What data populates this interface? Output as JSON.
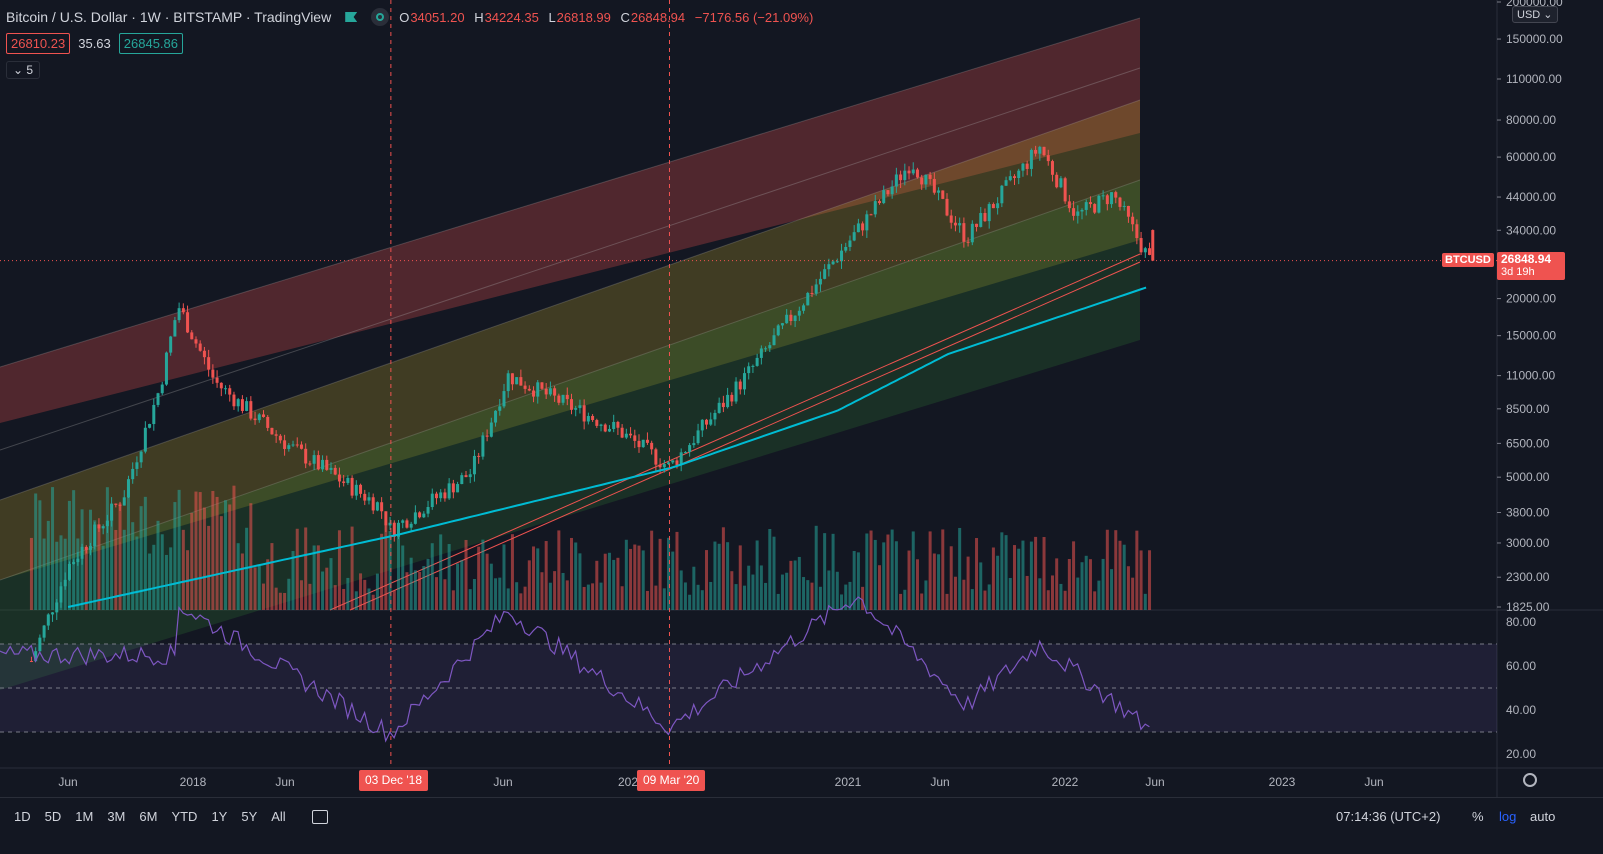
{
  "header": {
    "title": "Bitcoin / U.S. Dollar · 1W · BITSTAMP · TradingView",
    "ohlc": [
      {
        "label": "O",
        "value": "34051.20"
      },
      {
        "label": "H",
        "value": "34224.35"
      },
      {
        "label": "L",
        "value": "26818.99"
      },
      {
        "label": "C",
        "value": "26848.94"
      }
    ],
    "change": "−7176.56 (−21.09%)",
    "sma_value": "26810.23",
    "sma_spread": "35.63",
    "ema_value": "26845.86",
    "collapse_count": "5",
    "currency": "USD"
  },
  "price_scale": {
    "labels": [
      "200000.00",
      "150000.00",
      "110000.00",
      "80000.00",
      "60000.00",
      "44000.00",
      "34000.00",
      "20000.00",
      "15000.00",
      "11000.00",
      "8500.00",
      "6500.00",
      "5000.00",
      "3800.00",
      "3000.00",
      "2300.00",
      "1825.00"
    ],
    "symbol_tag": "BTCUSD",
    "last_price": "26848.94",
    "countdown": "3d 19h"
  },
  "rsi_scale": {
    "labels": [
      "80.00",
      "60.00",
      "40.00",
      "20.00"
    ]
  },
  "time_axis": {
    "labels": [
      "Jun",
      "2018",
      "Jun",
      "Jun",
      "2021",
      "Jun",
      "2022",
      "Jun",
      "2023",
      "Jun"
    ],
    "partial_label": "202",
    "markers": [
      "03 Dec '18",
      "09 Mar '20"
    ]
  },
  "bottom_bar": {
    "ranges": [
      "1D",
      "5D",
      "1M",
      "3M",
      "6M",
      "YTD",
      "1Y",
      "5Y",
      "All"
    ],
    "clock": "07:14:36 (UTC+2)",
    "percent": "%",
    "log": "log",
    "auto": "auto"
  },
  "colors": {
    "up": "#26a69a",
    "down": "#ef5350",
    "ma": "#00bcd4",
    "rsi": "#7e57c2"
  },
  "chart_data": {
    "type": "candlestick",
    "title": "Bitcoin / U.S. Dollar · 1W · BITSTAMP",
    "yscale": "log",
    "ylim": [
      1825,
      200000
    ],
    "last": {
      "open": 34051.2,
      "high": 34224.35,
      "low": 26818.99,
      "close": 26848.94
    },
    "weekly_closes_approx": [
      {
        "date": "2017-04",
        "close": 1200
      },
      {
        "date": "2017-06",
        "close": 2500
      },
      {
        "date": "2017-09",
        "close": 4300
      },
      {
        "date": "2017-11",
        "close": 10000
      },
      {
        "date": "2017-12",
        "close": 19000
      },
      {
        "date": "2018-02",
        "close": 10500
      },
      {
        "date": "2018-06",
        "close": 6400
      },
      {
        "date": "2018-11",
        "close": 4000
      },
      {
        "date": "2018-12-03",
        "close": 3300
      },
      {
        "date": "2019-04",
        "close": 5200
      },
      {
        "date": "2019-06",
        "close": 11000
      },
      {
        "date": "2019-12",
        "close": 7200
      },
      {
        "date": "2020-03-09",
        "close": 5400
      },
      {
        "date": "2020-07",
        "close": 11000
      },
      {
        "date": "2020-12",
        "close": 28000
      },
      {
        "date": "2021-04",
        "close": 58000
      },
      {
        "date": "2021-07",
        "close": 32000
      },
      {
        "date": "2021-11",
        "close": 65000
      },
      {
        "date": "2022-01",
        "close": 38000
      },
      {
        "date": "2022-03",
        "close": 45000
      },
      {
        "date": "2022-05",
        "close": 26848.94
      }
    ],
    "ma_200w_approx": [
      {
        "date": "2017-06",
        "value": 1825
      },
      {
        "date": "2018-12",
        "value": 3200
      },
      {
        "date": "2020-03",
        "value": 5400
      },
      {
        "date": "2020-12",
        "value": 8400
      },
      {
        "date": "2021-06",
        "value": 13000
      },
      {
        "date": "2022-05",
        "value": 22000
      }
    ],
    "rsi": {
      "levels": [
        70,
        50,
        30
      ],
      "ylim": [
        20,
        80
      ],
      "points_approx": [
        {
          "date": "2017-12",
          "value": 88
        },
        {
          "date": "2018-12-03",
          "value": 29
        },
        {
          "date": "2019-06",
          "value": 85
        },
        {
          "date": "2020-03-09",
          "value": 32
        },
        {
          "date": "2021-01",
          "value": 92
        },
        {
          "date": "2021-07",
          "value": 42
        },
        {
          "date": "2021-11",
          "value": 70
        },
        {
          "date": "2022-05",
          "value": 31
        }
      ]
    }
  }
}
